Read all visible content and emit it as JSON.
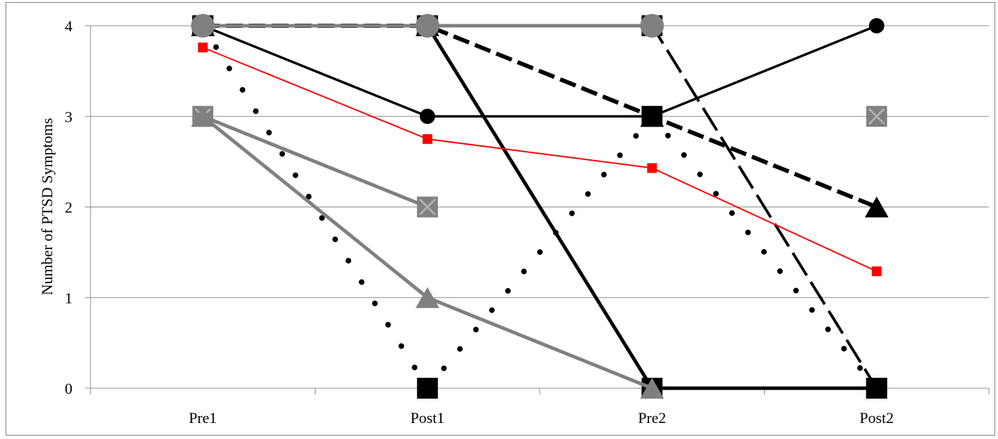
{
  "chart_data": {
    "type": "line",
    "title": "",
    "xlabel": "",
    "ylabel": "Number of PTSD Symptoms",
    "categories": [
      "Pre1",
      "Post1",
      "Pre2",
      "Post2"
    ],
    "ylim": [
      0,
      4
    ],
    "yticks": [
      0,
      1,
      2,
      3,
      4
    ],
    "grid": true,
    "legend": "none",
    "series": [
      {
        "values": [
          4,
          4,
          3,
          2
        ],
        "color": "#000000",
        "line": "dashed",
        "marker": "triangle"
      },
      {
        "values": [
          4,
          4,
          4,
          0
        ],
        "color": "#000000",
        "line": "longdash",
        "marker": "square"
      },
      {
        "values": [
          4,
          3,
          3,
          4
        ],
        "color": "#000000",
        "line": "solid",
        "marker": "circle"
      },
      {
        "values": [
          4,
          4,
          0,
          0
        ],
        "color": "#000000",
        "line": "solid-thick",
        "marker": "square"
      },
      {
        "values": [
          4,
          0,
          3,
          0
        ],
        "color": "#000000",
        "line": "dotted",
        "marker": "square"
      },
      {
        "values": [
          4,
          4,
          4,
          null
        ],
        "color": "#808080",
        "line": "solid-thick",
        "marker": "circle"
      },
      {
        "values": [
          3,
          2,
          null,
          3
        ],
        "color": "#808080",
        "line": "solid-thick",
        "marker": "x-square"
      },
      {
        "values": [
          3,
          1,
          0,
          null
        ],
        "color": "#808080",
        "line": "solid-thick",
        "marker": "triangle"
      },
      {
        "values": [
          3.76,
          2.75,
          2.43,
          1.29
        ],
        "color": "#ff0000",
        "line": "solid-thin",
        "marker": "square"
      }
    ]
  }
}
